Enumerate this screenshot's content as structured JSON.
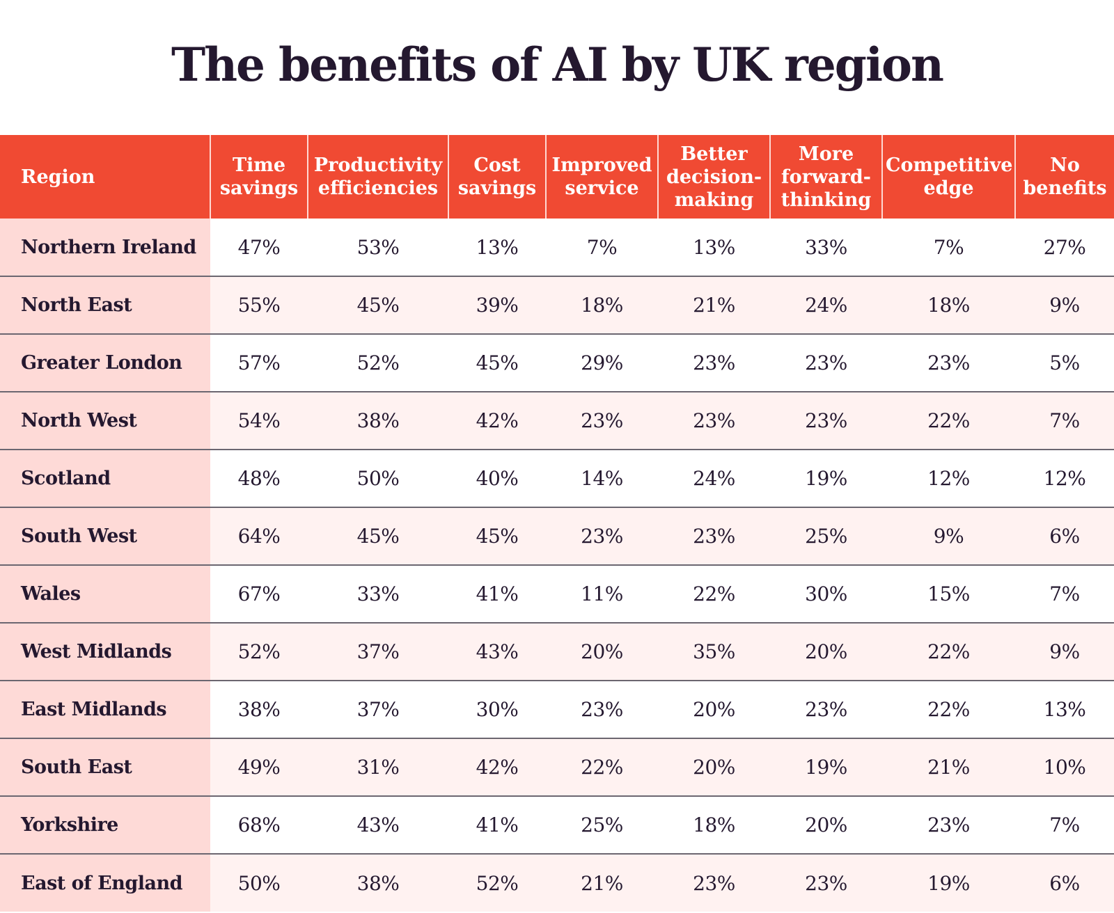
{
  "colors": {
    "header_bg": "#f04a33",
    "region_bg": "#fedad7",
    "row_alt_bg": "#fff2f1",
    "title_color": "#24182f"
  },
  "chart_data": {
    "type": "table",
    "title": "The benefits of AI by UK region",
    "columns": [
      "Region",
      "Time savings",
      "Productivity efficiencies",
      "Cost savings",
      "Improved service",
      "Better decision-making",
      "More forward-thinking",
      "Competitive edge",
      "No benefits"
    ],
    "rows": [
      [
        "Northern Ireland",
        "47%",
        "53%",
        "13%",
        "7%",
        "13%",
        "33%",
        "7%",
        "27%"
      ],
      [
        "North East",
        "55%",
        "45%",
        "39%",
        "18%",
        "21%",
        "24%",
        "18%",
        "9%"
      ],
      [
        "Greater London",
        "57%",
        "52%",
        "45%",
        "29%",
        "23%",
        "23%",
        "23%",
        "5%"
      ],
      [
        "North West",
        "54%",
        "38%",
        "42%",
        "23%",
        "23%",
        "23%",
        "22%",
        "7%"
      ],
      [
        "Scotland",
        "48%",
        "50%",
        "40%",
        "14%",
        "24%",
        "19%",
        "12%",
        "12%"
      ],
      [
        "South West",
        "64%",
        "45%",
        "45%",
        "23%",
        "23%",
        "25%",
        "9%",
        "6%"
      ],
      [
        "Wales",
        "67%",
        "33%",
        "41%",
        "11%",
        "22%",
        "30%",
        "15%",
        "7%"
      ],
      [
        "West Midlands",
        "52%",
        "37%",
        "43%",
        "20%",
        "35%",
        "20%",
        "22%",
        "9%"
      ],
      [
        "East Midlands",
        "38%",
        "37%",
        "30%",
        "23%",
        "20%",
        "23%",
        "22%",
        "13%"
      ],
      [
        "South East",
        "49%",
        "31%",
        "42%",
        "22%",
        "20%",
        "19%",
        "21%",
        "10%"
      ],
      [
        "Yorkshire",
        "68%",
        "43%",
        "41%",
        "25%",
        "18%",
        "20%",
        "23%",
        "7%"
      ],
      [
        "East of England",
        "50%",
        "38%",
        "52%",
        "21%",
        "23%",
        "23%",
        "19%",
        "6%"
      ]
    ]
  }
}
